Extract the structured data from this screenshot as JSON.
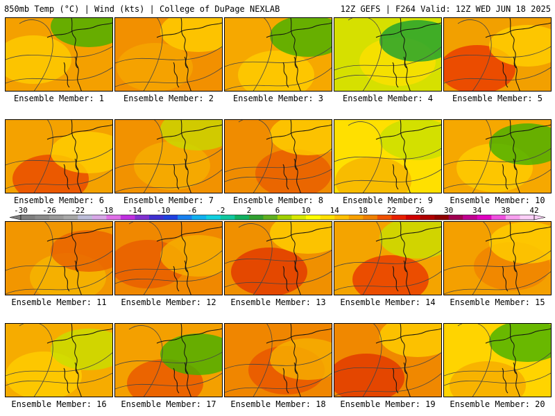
{
  "header": {
    "left": "850mb Temp (°C) | Wind (kts) | College of DuPage NEXLAB",
    "right": "12Z GEFS | F264 Valid: 12Z WED JUN 18 2025"
  },
  "caption_prefix": "Ensemble Member: ",
  "members": [
    {
      "label": "Ensemble Member: 1",
      "base": "#f4a000",
      "blobs": [
        [
          "#ffd000",
          0.35
        ],
        [
          "#43b000",
          0.25
        ]
      ]
    },
    {
      "label": "Ensemble Member: 2",
      "base": "#f29000",
      "blobs": [
        [
          "#f5a800",
          0.3
        ],
        [
          "#ffd000",
          0.1
        ]
      ]
    },
    {
      "label": "Ensemble Member: 3",
      "base": "#f6a800",
      "blobs": [
        [
          "#ffd000",
          0.35
        ],
        [
          "#43b000",
          0.25
        ]
      ]
    },
    {
      "label": "Ensemble Member: 4",
      "base": "#d6e000",
      "blobs": [
        [
          "#ffe000",
          0.3
        ],
        [
          "#1aa030",
          0.45
        ]
      ]
    },
    {
      "label": "Ensemble Member: 5",
      "base": "#f2a000",
      "blobs": [
        [
          "#e83000",
          0.25
        ],
        [
          "#ffd000",
          0.35
        ]
      ]
    },
    {
      "label": "Ensemble Member: 6",
      "base": "#f4a200",
      "blobs": [
        [
          "#e84000",
          0.2
        ],
        [
          "#ffd000",
          0.15
        ]
      ]
    },
    {
      "label": "Ensemble Member: 7",
      "base": "#f29200",
      "blobs": [
        [
          "#f6b000",
          0.3
        ],
        [
          "#c8d800",
          0.1
        ]
      ]
    },
    {
      "label": "Ensemble Member: 8",
      "base": "#f08c00",
      "blobs": [
        [
          "#e85a00",
          0.35
        ],
        [
          "#ffd000",
          0.2
        ]
      ]
    },
    {
      "label": "Ensemble Member: 9",
      "base": "#ffe000",
      "blobs": [
        [
          "#f6b000",
          0.3
        ],
        [
          "#c8e000",
          0.15
        ]
      ]
    },
    {
      "label": "Ensemble Member: 10",
      "base": "#f6a800",
      "blobs": [
        [
          "#ffd000",
          0.3
        ],
        [
          "#43b000",
          0.2
        ]
      ]
    },
    {
      "label": "Ensemble Member: 11",
      "base": "#f29600",
      "blobs": [
        [
          "#f6b800",
          0.3
        ],
        [
          "#e86000",
          0.15
        ]
      ]
    },
    {
      "label": "Ensemble Member: 12",
      "base": "#f08800",
      "blobs": [
        [
          "#e85a00",
          0.3
        ],
        [
          "#f6b000",
          0.2
        ]
      ]
    },
    {
      "label": "Ensemble Member: 13",
      "base": "#f09000",
      "blobs": [
        [
          "#e03000",
          0.3
        ],
        [
          "#ffd000",
          0.2
        ]
      ]
    },
    {
      "label": "Ensemble Member: 14",
      "base": "#f4a400",
      "blobs": [
        [
          "#e83000",
          0.3
        ],
        [
          "#c8e000",
          0.2
        ]
      ]
    },
    {
      "label": "Ensemble Member: 15",
      "base": "#f4a000",
      "blobs": [
        [
          "#f08000",
          0.3
        ],
        [
          "#ffd000",
          0.25
        ]
      ]
    },
    {
      "label": "Ensemble Member: 16",
      "base": "#f6ac00",
      "blobs": [
        [
          "#ffd000",
          0.35
        ],
        [
          "#c8e000",
          0.15
        ]
      ]
    },
    {
      "label": "Ensemble Member: 17",
      "base": "#f4a000",
      "blobs": [
        [
          "#e85000",
          0.2
        ],
        [
          "#43b000",
          0.35
        ]
      ]
    },
    {
      "label": "Ensemble Member: 18",
      "base": "#f08600",
      "blobs": [
        [
          "#e85000",
          0.35
        ],
        [
          "#f6b000",
          0.2
        ]
      ]
    },
    {
      "label": "Ensemble Member: 19",
      "base": "#f08800",
      "blobs": [
        [
          "#e03000",
          0.35
        ],
        [
          "#ffd000",
          0.2
        ]
      ]
    },
    {
      "label": "Ensemble Member: 20",
      "base": "#ffd400",
      "blobs": [
        [
          "#f6a800",
          0.3
        ],
        [
          "#43b000",
          0.2
        ]
      ]
    }
  ],
  "colorbar": {
    "tick_labels": [
      "-30",
      "-26",
      "-22",
      "-18",
      "-14",
      "-10",
      "-6",
      "-2",
      "2",
      "6",
      "10",
      "14",
      "18",
      "22",
      "26",
      "30",
      "34",
      "38",
      "42"
    ],
    "colors": [
      "#7f7f7f",
      "#8c8c8c",
      "#9a9a9a",
      "#a8a8a8",
      "#bcbcd8",
      "#d8a8e8",
      "#e070e8",
      "#c030e0",
      "#8030d0",
      "#4030d0",
      "#2040e0",
      "#1880f0",
      "#10b0f0",
      "#10d0e0",
      "#10c8a0",
      "#10b060",
      "#30a030",
      "#60b020",
      "#a0d000",
      "#d8e800",
      "#ffff00",
      "#ffe000",
      "#ffc000",
      "#f8a000",
      "#f08000",
      "#f05000",
      "#e82000",
      "#d00000",
      "#b00000",
      "#900000",
      "#a00050",
      "#c00090",
      "#e000c0",
      "#f050e0",
      "#f8a0f0",
      "#fcd0f8"
    ]
  }
}
